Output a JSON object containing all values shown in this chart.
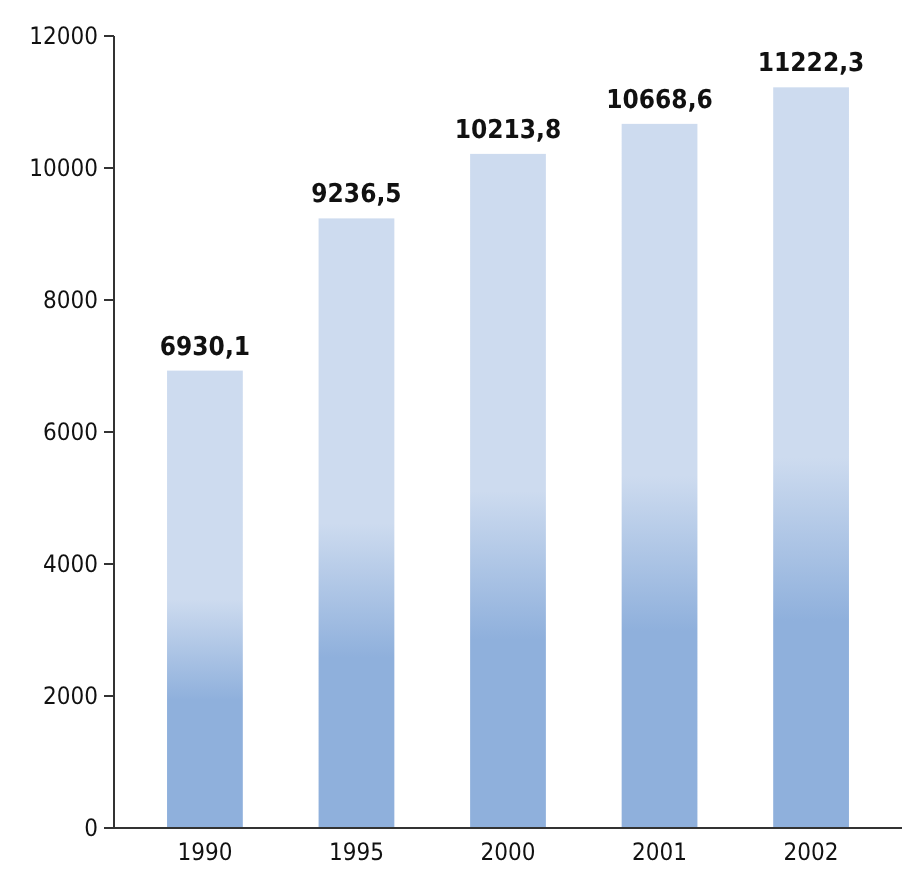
{
  "chart_data": {
    "type": "bar",
    "categories": [
      "1990",
      "1995",
      "2000",
      "2001",
      "2002"
    ],
    "values": [
      6930.1,
      9236.5,
      10213.8,
      10668.6,
      11222.3
    ],
    "value_labels": [
      "6930,1",
      "9236,5",
      "10213,8",
      "10668,6",
      "11222,3"
    ],
    "color": "#8fb0dc",
    "ylim": [
      0,
      12000
    ],
    "yticks": [
      0,
      2000,
      4000,
      6000,
      8000,
      10000,
      12000
    ],
    "grid": false
  }
}
